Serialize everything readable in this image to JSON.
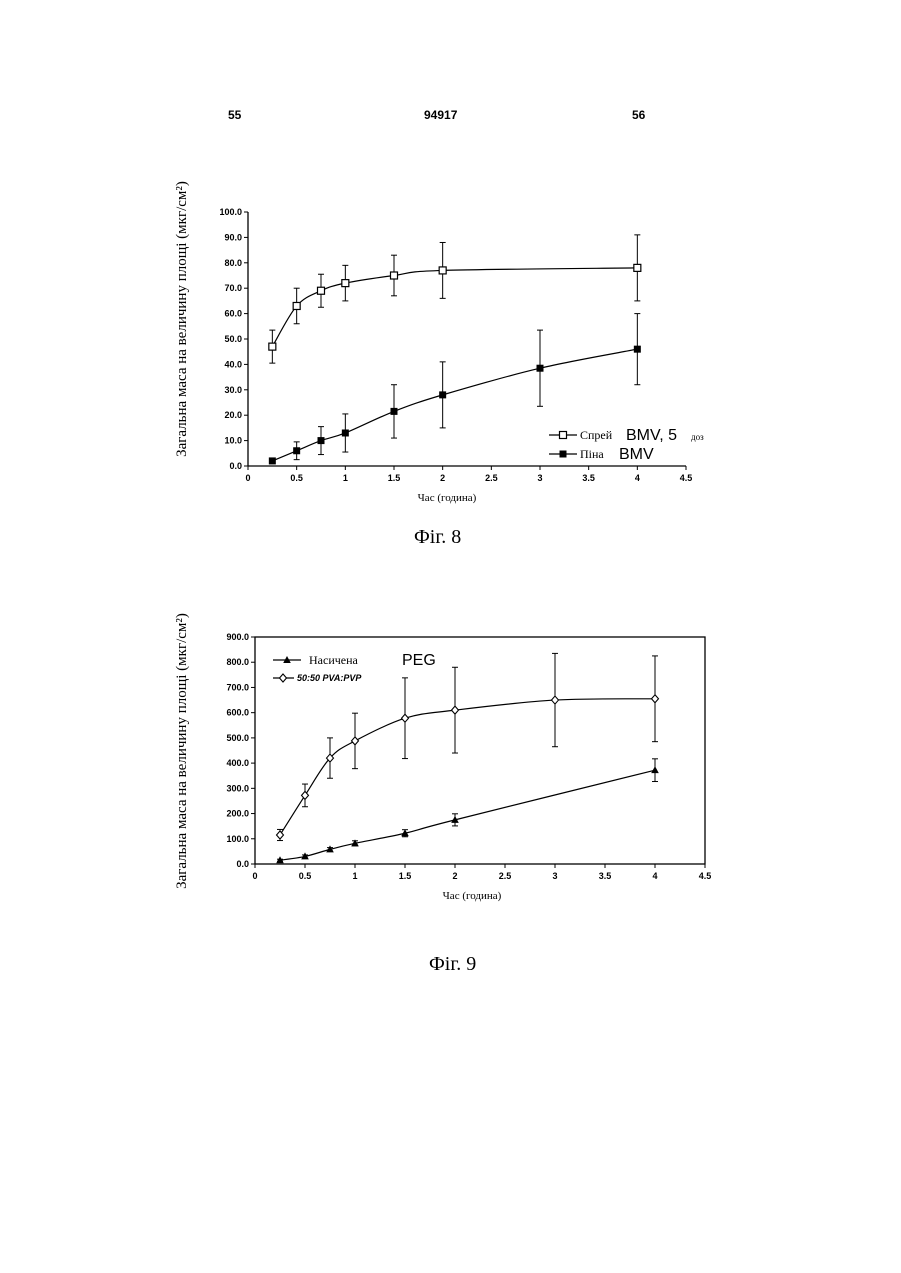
{
  "header": {
    "left": "55",
    "center": "94917",
    "right": "56"
  },
  "chart_data": [
    {
      "type": "line",
      "caption": "Фіг. 8",
      "xlabel": "Час (година)",
      "ylabel": "Загальна маса на величину площі (мкг/см²)",
      "xlim": [
        0,
        4.5
      ],
      "ylim": [
        0,
        100
      ],
      "xticks": [
        "0",
        "0.5",
        "1",
        "1.5",
        "2",
        "2.5",
        "3",
        "3.5",
        "4",
        "4.5"
      ],
      "yticks": [
        "0.0",
        "10.0",
        "20.0",
        "30.0",
        "40.0",
        "50.0",
        "60.0",
        "70.0",
        "80.0",
        "90.0",
        "100.0"
      ],
      "legend_position": "bottom-right",
      "series": [
        {
          "name": "Спрей",
          "marker": "open-square",
          "x": [
            0.25,
            0.5,
            0.75,
            1,
            1.5,
            2,
            4
          ],
          "y": [
            47,
            63,
            69,
            72,
            75,
            77,
            78
          ],
          "err": [
            6.5,
            7,
            6.5,
            7,
            8,
            11,
            13
          ]
        },
        {
          "name": "Піна",
          "marker": "filled-square",
          "x": [
            0.25,
            0.5,
            0.75,
            1,
            1.5,
            2,
            3,
            4
          ],
          "y": [
            2,
            6,
            10,
            13,
            21.5,
            28,
            38.5,
            46
          ],
          "err": [
            1,
            3.5,
            5.5,
            7.5,
            10.5,
            13,
            15,
            14
          ]
        }
      ],
      "legend": {
        "items": [
          {
            "label": "Спрей",
            "suffix": "BMV, 5",
            "note": "доз"
          },
          {
            "label": "Піна",
            "suffix": "BMV",
            "note": ""
          }
        ]
      }
    },
    {
      "type": "line",
      "caption": "Фіг. 9",
      "xlabel": "Час (година)",
      "ylabel": "Загальна маса на величину площі (мкг/см²)",
      "xlim": [
        0,
        4.5
      ],
      "ylim": [
        0,
        900
      ],
      "xticks": [
        "0",
        "0.5",
        "1",
        "1.5",
        "2",
        "2.5",
        "3",
        "3.5",
        "4",
        "4.5"
      ],
      "yticks": [
        "0.0",
        "100.0",
        "200.0",
        "300.0",
        "400.0",
        "500.0",
        "600.0",
        "700.0",
        "800.0",
        "900.0"
      ],
      "legend_position": "top-left",
      "series": [
        {
          "name": "Насичена PEG",
          "marker": "filled-triangle",
          "x": [
            0.25,
            0.5,
            0.75,
            1,
            1.5,
            2,
            4
          ],
          "y": [
            15,
            30,
            58,
            82,
            122,
            175,
            372
          ],
          "err": [
            4,
            6,
            7,
            10,
            14,
            24,
            45
          ]
        },
        {
          "name": "50:50 PVA:PVP",
          "marker": "open-diamond",
          "x": [
            0.25,
            0.5,
            0.75,
            1,
            1.5,
            2,
            3,
            4
          ],
          "y": [
            115,
            272,
            420,
            488,
            578,
            610,
            650,
            655
          ],
          "err": [
            22,
            45,
            80,
            110,
            160,
            170,
            185,
            170
          ]
        }
      ],
      "legend": {
        "items": [
          {
            "label": "Насичена",
            "suffix": "PEG"
          },
          {
            "label": "50:50 PVA:PVP",
            "suffix": ""
          }
        ]
      }
    }
  ]
}
